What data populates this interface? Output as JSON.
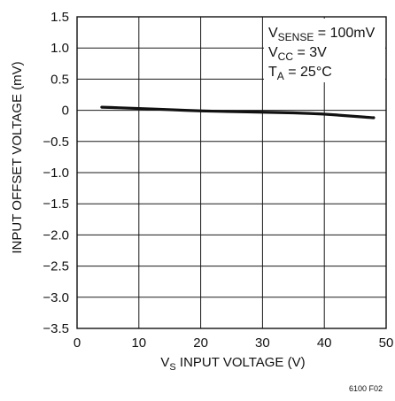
{
  "chart_data": {
    "type": "line",
    "xlabel": "V_S INPUT VOLTAGE (V)",
    "xlabel_parts": {
      "v": "V",
      "sub": "S",
      "rest": " INPUT VOLTAGE (V)"
    },
    "ylabel": "INPUT OFFSET VOLTAGE (mV)",
    "xlim": [
      0,
      50
    ],
    "ylim": [
      -3.5,
      1.5
    ],
    "xticks": [
      0,
      10,
      20,
      30,
      40,
      50
    ],
    "xtick_labels": [
      "0",
      "10",
      "20",
      "30",
      "40",
      "50"
    ],
    "yticks": [
      1.5,
      1.0,
      0.5,
      0,
      -0.5,
      -1.0,
      -1.5,
      -2.0,
      -2.5,
      -3.0,
      -3.5
    ],
    "ytick_labels": [
      "1.5",
      "1.0",
      "0.5",
      "0",
      "−0.5",
      "−1.0",
      "−1.5",
      "−2.0",
      "−2.5",
      "−3.0",
      "−3.5"
    ],
    "grid": true,
    "series": [
      {
        "x": [
          4,
          10,
          15,
          20,
          25,
          30,
          35,
          40,
          44,
          48
        ],
        "values": [
          0.05,
          0.03,
          0.01,
          -0.01,
          -0.02,
          -0.03,
          -0.04,
          -0.06,
          -0.09,
          -0.12
        ]
      }
    ],
    "annotations": [
      {
        "v": "V",
        "sub": "SENSE",
        "rest": " = 100mV"
      },
      {
        "v": "V",
        "sub": "CC",
        "rest": " = 3V"
      },
      {
        "v": "T",
        "sub": "A",
        "rest": " = 25°C"
      }
    ],
    "figure_id": "6100 F02"
  }
}
